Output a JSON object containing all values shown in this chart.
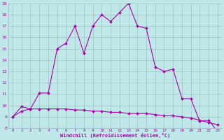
{
  "xlabel": "Windchill (Refroidissement éolien,°C)",
  "background_color": "#c0e8e8",
  "grid_color": "#a0c8c8",
  "line_color": "#aa00aa",
  "x_hours": [
    0,
    1,
    2,
    3,
    4,
    5,
    6,
    7,
    8,
    9,
    10,
    11,
    12,
    13,
    14,
    15,
    16,
    17,
    18,
    19,
    20,
    21,
    22,
    23
  ],
  "temp_values": [
    9.0,
    9.9,
    9.7,
    11.1,
    11.1,
    15.0,
    15.5,
    17.0,
    14.6,
    17.0,
    18.0,
    17.4,
    18.2,
    19.0,
    17.0,
    16.8,
    13.4,
    13.0,
    13.2,
    10.6,
    10.6,
    8.6,
    8.7,
    7.7
  ],
  "windchill_values": [
    9.0,
    9.5,
    9.7,
    9.7,
    9.7,
    9.7,
    9.7,
    9.6,
    9.6,
    9.5,
    9.5,
    9.4,
    9.4,
    9.3,
    9.3,
    9.3,
    9.2,
    9.1,
    9.1,
    9.0,
    8.9,
    8.7,
    8.5,
    8.3
  ],
  "ylim": [
    8,
    19
  ],
  "xlim": [
    -0.5,
    23.5
  ],
  "yticks": [
    8,
    9,
    10,
    11,
    12,
    13,
    14,
    15,
    16,
    17,
    18,
    19
  ]
}
